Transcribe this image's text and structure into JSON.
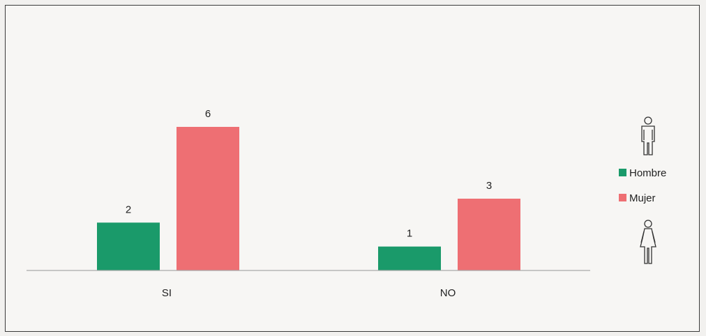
{
  "chart_data": {
    "type": "bar",
    "categories": [
      "SI",
      "NO"
    ],
    "series": [
      {
        "name": "Hombre",
        "values": [
          2,
          1
        ],
        "color": "#1a9a6a"
      },
      {
        "name": "Mujer",
        "values": [
          6,
          3
        ],
        "color": "#ee6f73"
      }
    ],
    "title": "",
    "xlabel": "",
    "ylabel": "",
    "ylim": [
      0,
      6
    ],
    "grid": false,
    "data_labels": true,
    "legend_position": "right",
    "legend_icons": [
      "male-figure-icon",
      "female-figure-icon"
    ]
  }
}
